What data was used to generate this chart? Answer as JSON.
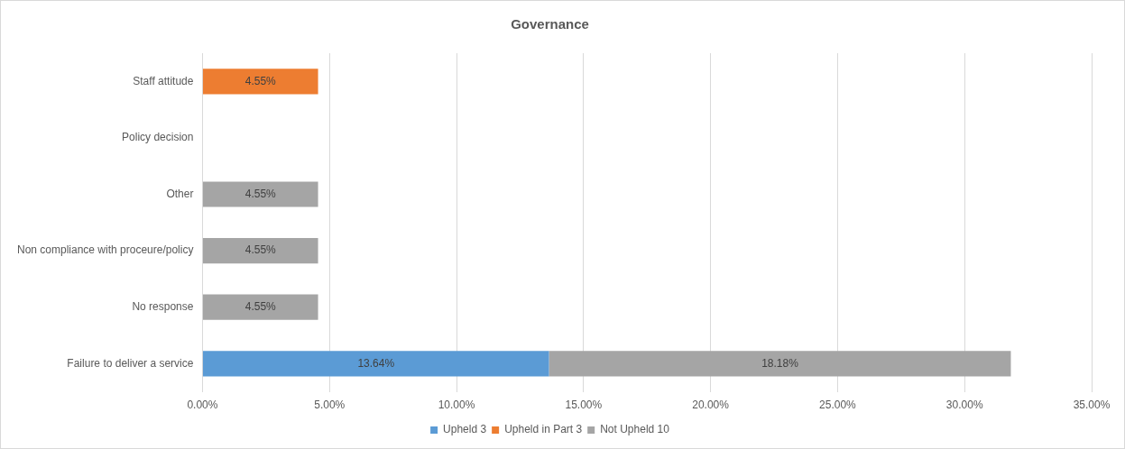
{
  "chart_data": {
    "type": "bar",
    "orientation": "horizontal",
    "stacked": true,
    "title": "Governance",
    "categories": [
      "Staff attitude",
      "Policy decision",
      "Other",
      "Non compliance with proceure/policy",
      "No response",
      "Failure to deliver a service"
    ],
    "series": [
      {
        "name": "Upheld 3",
        "color": "#5b9bd5",
        "values": [
          null,
          null,
          null,
          null,
          null,
          13.64
        ],
        "value_labels": [
          null,
          null,
          null,
          null,
          null,
          "13.64%"
        ]
      },
      {
        "name": "Upheld in Part 3",
        "color": "#ed7d31",
        "values": [
          4.55,
          null,
          null,
          null,
          null,
          null
        ],
        "value_labels": [
          "4.55%",
          null,
          null,
          null,
          null,
          null
        ]
      },
      {
        "name": "Not Upheld 10",
        "color": "#a5a5a5",
        "values": [
          null,
          null,
          4.55,
          4.55,
          4.55,
          18.18
        ],
        "value_labels": [
          null,
          null,
          "4.55%",
          "4.55%",
          "4.55%",
          "18.18%"
        ]
      }
    ],
    "xlim": [
      0,
      35
    ],
    "xticks": [
      {
        "value": 0,
        "label": "0.00%"
      },
      {
        "value": 5,
        "label": "5.00%"
      },
      {
        "value": 10,
        "label": "10.00%"
      },
      {
        "value": 15,
        "label": "15.00%"
      },
      {
        "value": 20,
        "label": "20.00%"
      },
      {
        "value": 25,
        "label": "25.00%"
      },
      {
        "value": 30,
        "label": "30.00%"
      },
      {
        "value": 35,
        "label": "35.00%"
      }
    ],
    "grid": "x",
    "legend": "bottom"
  }
}
